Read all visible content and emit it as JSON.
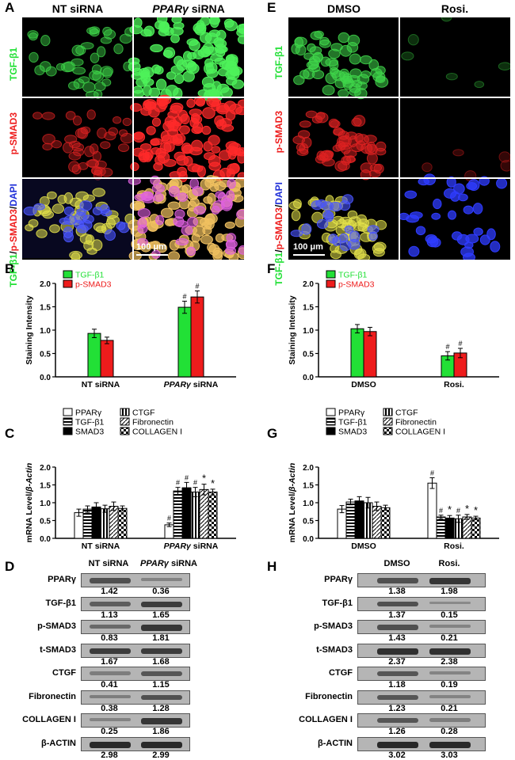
{
  "panels": {
    "A": "A",
    "B": "B",
    "C": "C",
    "D": "D",
    "E": "E",
    "F": "F",
    "G": "G",
    "H": "H"
  },
  "micrograph_left": {
    "col1": "NT siRNA",
    "col2_italic": "PPARγ",
    "col2_rest": " siRNA",
    "rows": {
      "r1": "TGF-β1",
      "r2": "p-SMAD3",
      "r3_green": "TGF-β1",
      "r3_sep": "/",
      "r3_red": "p-SMAD3",
      "r3_slash": "/",
      "r3_blue": "DAPI"
    },
    "scalebar": "100 μm"
  },
  "micrograph_right": {
    "col1": "DMSO",
    "col2": "Rosi.",
    "rows": {
      "r1": "TGF-β1",
      "r2": "p-SMAD3",
      "r3_green": "TGF-β1",
      "r3_sep": "/",
      "r3_red": "p-SMAD3",
      "r3_slash": "/",
      "r3_blue": "DAPI"
    },
    "scalebar": "100 μm"
  },
  "colors": {
    "green": "#22e036",
    "red": "#ee1c1c",
    "blue": "#1f2fd8"
  },
  "chart_data": [
    {
      "id": "B",
      "type": "bar",
      "ylabel": "Staining Intensity",
      "ylim": [
        0,
        2.0
      ],
      "yticks": [
        "0.0",
        "0.5",
        "1.0",
        "1.5",
        "2.0"
      ],
      "categories": [
        "NT siRNA",
        "PPARγ siRNA"
      ],
      "legend": [
        "TGF-β1",
        "p-SMAD3"
      ],
      "series": [
        {
          "name": "TGF-β1",
          "values": [
            0.93,
            1.49
          ],
          "errors": [
            0.09,
            0.13
          ],
          "marks": [
            "",
            "#"
          ]
        },
        {
          "name": "p-SMAD3",
          "values": [
            0.78,
            1.71
          ],
          "errors": [
            0.07,
            0.13
          ],
          "marks": [
            "",
            "#"
          ]
        }
      ]
    },
    {
      "id": "F",
      "type": "bar",
      "ylabel": "Staining Intensity",
      "ylim": [
        0,
        2.0
      ],
      "yticks": [
        "0.0",
        "0.5",
        "1.0",
        "1.5",
        "2.0"
      ],
      "categories": [
        "DMSO",
        "Rosi."
      ],
      "legend": [
        "TGF-β1",
        "p-SMAD3"
      ],
      "series": [
        {
          "name": "TGF-β1",
          "values": [
            1.03,
            0.45
          ],
          "errors": [
            0.09,
            0.09
          ],
          "marks": [
            "",
            "#"
          ]
        },
        {
          "name": "p-SMAD3",
          "values": [
            0.97,
            0.51
          ],
          "errors": [
            0.09,
            0.1
          ],
          "marks": [
            "",
            "#"
          ]
        }
      ]
    },
    {
      "id": "C",
      "type": "bar",
      "ylabel_plain": "mRNA Level/",
      "ylabel_italic": "β-Actin",
      "ylim": [
        0,
        2.0
      ],
      "yticks": [
        "0.0",
        "0.5",
        "1.0",
        "1.5",
        "2.0"
      ],
      "categories": [
        "NT siRNA",
        "PPARγ siRNA"
      ],
      "legend": [
        "PPARγ",
        "TGF-β1",
        "SMAD3",
        "CTGF",
        "Fibronectin",
        "COLLAGEN I"
      ],
      "series": [
        {
          "name": "PPARγ",
          "values": [
            0.72,
            0.38
          ],
          "errors": [
            0.1,
            0.05
          ],
          "marks": [
            "",
            "#"
          ]
        },
        {
          "name": "TGF-β1",
          "values": [
            0.82,
            1.33
          ],
          "errors": [
            0.09,
            0.1
          ],
          "marks": [
            "",
            "#"
          ]
        },
        {
          "name": "SMAD3",
          "values": [
            0.88,
            1.42
          ],
          "errors": [
            0.12,
            0.15
          ],
          "marks": [
            "",
            "#"
          ]
        },
        {
          "name": "CTGF",
          "values": [
            0.83,
            1.3
          ],
          "errors": [
            0.1,
            0.13
          ],
          "marks": [
            "",
            "#"
          ]
        },
        {
          "name": "Fibronectin",
          "values": [
            0.9,
            1.37
          ],
          "errors": [
            0.12,
            0.15
          ],
          "marks": [
            "",
            "*"
          ]
        },
        {
          "name": "COLLAGEN I",
          "values": [
            0.84,
            1.3
          ],
          "errors": [
            0.07,
            0.08
          ],
          "marks": [
            "",
            "*"
          ]
        }
      ]
    },
    {
      "id": "G",
      "type": "bar",
      "ylabel_plain": "mRNA Level/",
      "ylabel_italic": "β-Actin",
      "ylim": [
        0,
        2.0
      ],
      "yticks": [
        "0.0",
        "0.5",
        "1.0",
        "1.5",
        "2.0"
      ],
      "categories": [
        "DMSO",
        "Rosi."
      ],
      "legend": [
        "PPARγ",
        "TGF-β1",
        "SMAD3",
        "CTGF",
        "Fibronectin",
        "COLLAGEN I"
      ],
      "series": [
        {
          "name": "PPARγ",
          "values": [
            0.82,
            1.55
          ],
          "errors": [
            0.1,
            0.15
          ],
          "marks": [
            "",
            "#"
          ]
        },
        {
          "name": "TGF-β1",
          "values": [
            1.02,
            0.6
          ],
          "errors": [
            0.08,
            0.05
          ],
          "marks": [
            "",
            "#"
          ]
        },
        {
          "name": "SMAD3",
          "values": [
            1.05,
            0.57
          ],
          "errors": [
            0.12,
            0.07
          ],
          "marks": [
            "",
            "*"
          ]
        },
        {
          "name": "CTGF",
          "values": [
            1.0,
            0.55
          ],
          "errors": [
            0.15,
            0.1
          ],
          "marks": [
            "",
            "#"
          ]
        },
        {
          "name": "Fibronectin",
          "values": [
            0.9,
            0.6
          ],
          "errors": [
            0.12,
            0.07
          ],
          "marks": [
            "",
            "*"
          ]
        },
        {
          "name": "COLLAGEN I",
          "values": [
            0.86,
            0.57
          ],
          "errors": [
            0.07,
            0.05
          ],
          "marks": [
            "",
            "*"
          ]
        }
      ]
    }
  ],
  "western_left": {
    "head1": "NT siRNA",
    "head2_italic": "PPARγ",
    "head2_rest": " siRNA",
    "rows": [
      {
        "name": "PPARγ",
        "v1": "1.42",
        "v2": "0.36",
        "i1": 0.6,
        "i2": 0.2
      },
      {
        "name": "TGF-β1",
        "v1": "1.13",
        "v2": "1.65",
        "i1": 0.5,
        "i2": 0.75
      },
      {
        "name": "p-SMAD3",
        "v1": "0.83",
        "v2": "1.81",
        "i1": 0.4,
        "i2": 0.8
      },
      {
        "name": "t-SMAD3",
        "v1": "1.67",
        "v2": "1.68",
        "i1": 0.75,
        "i2": 0.75
      },
      {
        "name": "CTGF",
        "v1": "0.41",
        "v2": "1.15",
        "i1": 0.25,
        "i2": 0.55
      },
      {
        "name": "Fibronectin",
        "v1": "0.38",
        "v2": "1.28",
        "i1": 0.25,
        "i2": 0.6
      },
      {
        "name": "COLLAGEN I",
        "v1": "0.25",
        "v2": "1.86",
        "i1": 0.2,
        "i2": 0.8
      },
      {
        "name": "β-ACTIN",
        "v1": "2.98",
        "v2": "2.99",
        "i1": 0.9,
        "i2": 0.9
      }
    ]
  },
  "western_right": {
    "head1": "DMSO",
    "head2": "Rosi.",
    "rows": [
      {
        "name": "PPARγ",
        "v1": "1.38",
        "v2": "1.98",
        "i1": 0.6,
        "i2": 0.8
      },
      {
        "name": "TGF-β1",
        "v1": "1.37",
        "v2": "0.15",
        "i1": 0.6,
        "i2": 0.15
      },
      {
        "name": "p-SMAD3",
        "v1": "1.43",
        "v2": "0.21",
        "i1": 0.6,
        "i2": 0.2
      },
      {
        "name": "t-SMAD3",
        "v1": "2.37",
        "v2": "2.38",
        "i1": 0.85,
        "i2": 0.85
      },
      {
        "name": "CTGF",
        "v1": "1.18",
        "v2": "0.19",
        "i1": 0.55,
        "i2": 0.2
      },
      {
        "name": "Fibronectin",
        "v1": "1.23",
        "v2": "0.21",
        "i1": 0.55,
        "i2": 0.2
      },
      {
        "name": "COLLAGEN I",
        "v1": "1.26",
        "v2": "0.28",
        "i1": 0.55,
        "i2": 0.25
      },
      {
        "name": "β-ACTIN",
        "v1": "3.02",
        "v2": "3.03",
        "i1": 0.9,
        "i2": 0.9
      }
    ]
  }
}
